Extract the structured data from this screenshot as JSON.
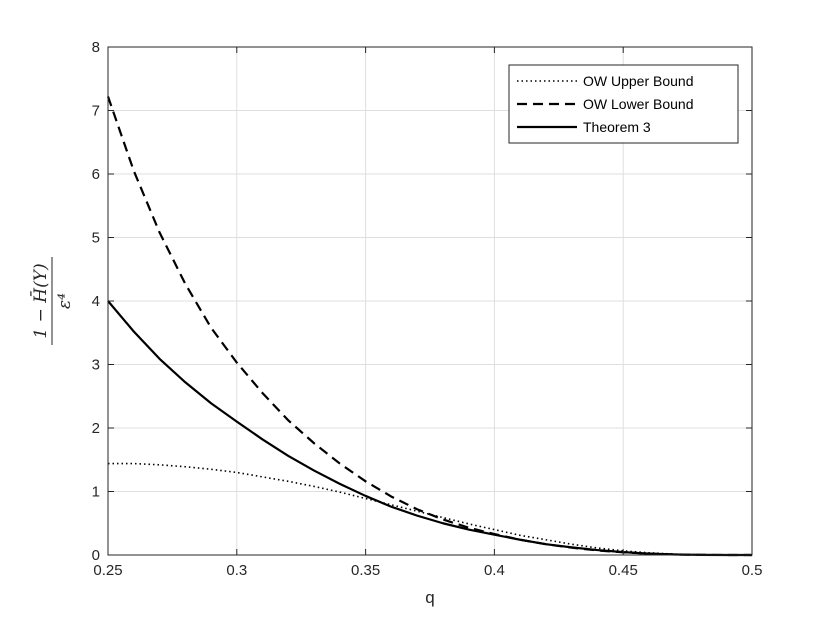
{
  "chart_data": {
    "type": "line",
    "xlabel": "q",
    "ylabel_numerator": "1 − H̄(Y)",
    "ylabel_denominator": "ε⁴",
    "xlim": [
      0.25,
      0.5
    ],
    "ylim": [
      0,
      8
    ],
    "xticks": [
      0.25,
      0.3,
      0.35,
      0.4,
      0.45,
      0.5
    ],
    "xtick_labels": [
      "0.25",
      "0.3",
      "0.35",
      "0.4",
      "0.45",
      "0.5"
    ],
    "yticks": [
      0,
      1,
      2,
      3,
      4,
      5,
      6,
      7,
      8
    ],
    "ytick_labels": [
      "0",
      "1",
      "2",
      "3",
      "4",
      "5",
      "6",
      "7",
      "8"
    ],
    "grid": true,
    "legend_position": "top-right",
    "x": [
      0.25,
      0.26,
      0.27,
      0.28,
      0.29,
      0.3,
      0.31,
      0.32,
      0.33,
      0.34,
      0.35,
      0.36,
      0.37,
      0.38,
      0.39,
      0.4,
      0.41,
      0.42,
      0.43,
      0.44,
      0.45,
      0.46,
      0.47,
      0.48,
      0.49,
      0.5
    ],
    "series": [
      {
        "name": "OW Upper Bound",
        "style": "dotted",
        "values": [
          1.44,
          1.44,
          1.42,
          1.39,
          1.35,
          1.3,
          1.23,
          1.16,
          1.08,
          0.99,
          0.89,
          0.79,
          0.69,
          0.59,
          0.49,
          0.4,
          0.31,
          0.24,
          0.17,
          0.11,
          0.065,
          0.035,
          0.014,
          0.004,
          0.0005,
          0.0
        ]
      },
      {
        "name": "OW Lower Bound",
        "style": "dashed",
        "values": [
          7.22,
          6.05,
          5.08,
          4.27,
          3.58,
          3.03,
          2.55,
          2.12,
          1.76,
          1.44,
          1.16,
          0.92,
          0.72,
          0.56,
          0.43,
          0.33,
          0.24,
          0.17,
          0.115,
          0.072,
          0.042,
          0.021,
          0.008,
          0.002,
          0.0003,
          0.0
        ]
      },
      {
        "name": "Theorem 3",
        "style": "solid",
        "values": [
          4.0,
          3.52,
          3.09,
          2.72,
          2.39,
          2.1,
          1.82,
          1.56,
          1.33,
          1.12,
          0.93,
          0.76,
          0.62,
          0.5,
          0.4,
          0.32,
          0.24,
          0.17,
          0.12,
          0.078,
          0.045,
          0.022,
          0.008,
          0.002,
          0.0003,
          0.0
        ]
      }
    ]
  }
}
